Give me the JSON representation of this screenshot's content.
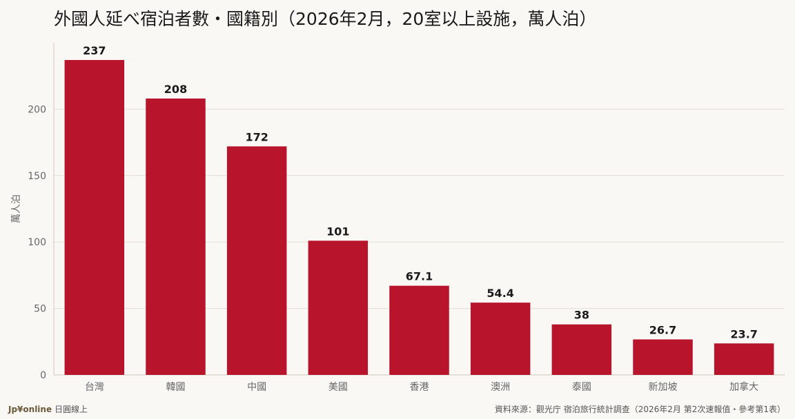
{
  "title": "外國人延べ宿泊者數・國籍別（2026年2月，20室以上設施，萬人泊）",
  "footer": {
    "brand": "Jp¥online",
    "brand_sub": "日圓線上",
    "source": "資料來源：觀光庁 宿泊旅行統計調查（2026年2月 第2次速報值・參考第1表）"
  },
  "colors": {
    "bar": "#b8142c",
    "grid": "#e3ded4",
    "axis_text": "#666666",
    "label_text": "#1a1a1a"
  },
  "chart_data": {
    "type": "bar",
    "categories": [
      "台灣",
      "韓國",
      "中國",
      "美國",
      "香港",
      "澳洲",
      "泰國",
      "新加坡",
      "加拿大"
    ],
    "values": [
      237,
      208,
      172,
      101,
      67.1,
      54.4,
      38,
      26.7,
      23.7
    ],
    "value_labels": [
      "237",
      "208",
      "172",
      "101",
      "67.1",
      "54.4",
      "38",
      "26.7",
      "23.7"
    ],
    "ylabel": "萬人泊",
    "ylim": [
      0,
      250
    ],
    "yticks": [
      0,
      50,
      100,
      150,
      200
    ],
    "grid": true
  }
}
